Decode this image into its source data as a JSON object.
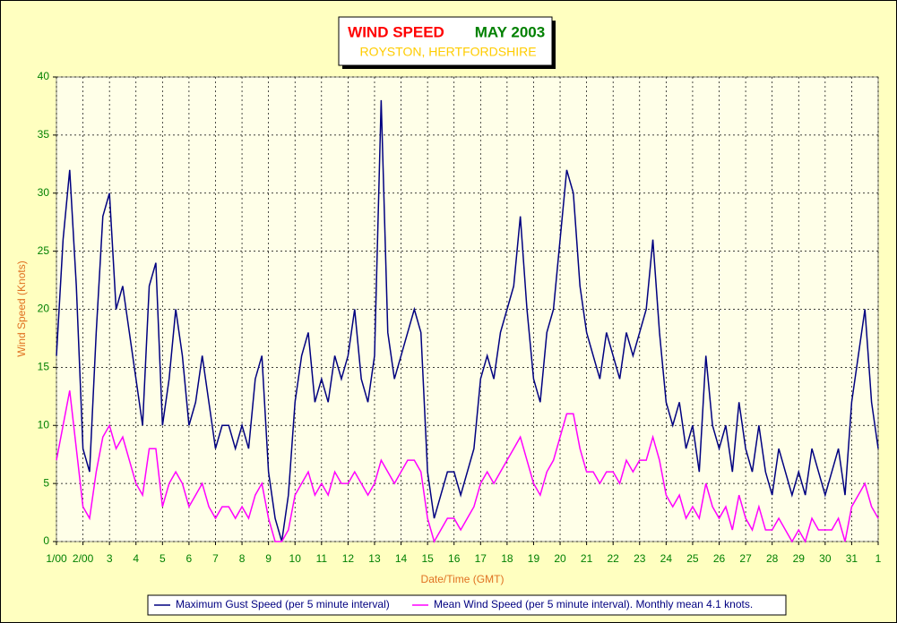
{
  "chart_data": {
    "type": "line",
    "title": "WIND SPEED",
    "title_period": "MAY 2003",
    "subtitle": "ROYSTON, HERTFORDSHIRE",
    "x_label": "Date/Time (GMT)",
    "y_label": "Wind Speed (Knots)",
    "x": [
      1,
      1.25,
      1.5,
      1.75,
      2,
      2.25,
      2.5,
      2.75,
      3,
      3.25,
      3.5,
      3.75,
      4,
      4.25,
      4.5,
      4.75,
      5,
      5.25,
      5.5,
      5.75,
      6,
      6.25,
      6.5,
      6.75,
      7,
      7.25,
      7.5,
      7.75,
      8,
      8.25,
      8.5,
      8.75,
      9,
      9.25,
      9.5,
      9.75,
      10,
      10.25,
      10.5,
      10.75,
      11,
      11.25,
      11.5,
      11.75,
      12,
      12.25,
      12.5,
      12.75,
      13,
      13.25,
      13.5,
      13.75,
      14,
      14.25,
      14.5,
      14.75,
      15,
      15.25,
      15.5,
      15.75,
      16,
      16.25,
      16.5,
      16.75,
      17,
      17.25,
      17.5,
      17.75,
      18,
      18.25,
      18.5,
      18.75,
      19,
      19.25,
      19.5,
      19.75,
      20,
      20.25,
      20.5,
      20.75,
      21,
      21.25,
      21.5,
      21.75,
      22,
      22.25,
      22.5,
      22.75,
      23,
      23.25,
      23.5,
      23.75,
      24,
      24.25,
      24.5,
      24.75,
      25,
      25.25,
      25.5,
      25.75,
      26,
      26.25,
      26.5,
      26.75,
      27,
      27.25,
      27.5,
      27.75,
      28,
      28.25,
      28.5,
      28.75,
      29,
      29.25,
      29.5,
      29.75,
      30,
      30.25,
      30.5,
      30.75,
      31,
      31.25,
      31.5,
      31.75,
      32
    ],
    "series": [
      {
        "name": "Maximum Gust Speed (per 5 minute interval)",
        "color": "#000080",
        "values": [
          16,
          26,
          32,
          22,
          8,
          6,
          18,
          28,
          30,
          20,
          22,
          18,
          14,
          10,
          22,
          24,
          10,
          14,
          20,
          16,
          10,
          12,
          16,
          12,
          8,
          10,
          10,
          8,
          10,
          8,
          14,
          16,
          6,
          2,
          0,
          4,
          12,
          16,
          18,
          12,
          14,
          12,
          16,
          14,
          16,
          20,
          14,
          12,
          16,
          38,
          18,
          14,
          16,
          18,
          20,
          18,
          6,
          2,
          4,
          6,
          6,
          4,
          6,
          8,
          14,
          16,
          14,
          18,
          20,
          22,
          28,
          20,
          14,
          12,
          18,
          20,
          26,
          32,
          30,
          22,
          18,
          16,
          14,
          18,
          16,
          14,
          18,
          16,
          18,
          20,
          26,
          18,
          12,
          10,
          12,
          8,
          10,
          6,
          16,
          10,
          8,
          10,
          6,
          12,
          8,
          6,
          10,
          6,
          4,
          8,
          6,
          4,
          6,
          4,
          8,
          6,
          4,
          6,
          8,
          4,
          12,
          16,
          20,
          12,
          8
        ]
      },
      {
        "name": "Mean Wind Speed (per 5 minute interval). Monthly mean 4.1 knots.",
        "color": "#ff00ff",
        "values": [
          7,
          10,
          13,
          8,
          3,
          2,
          6,
          9,
          10,
          8,
          9,
          7,
          5,
          4,
          8,
          8,
          3,
          5,
          6,
          5,
          3,
          4,
          5,
          3,
          2,
          3,
          3,
          2,
          3,
          2,
          4,
          5,
          2,
          0,
          0,
          1,
          4,
          5,
          6,
          4,
          5,
          4,
          6,
          5,
          5,
          6,
          5,
          4,
          5,
          7,
          6,
          5,
          6,
          7,
          7,
          6,
          2,
          0,
          1,
          2,
          2,
          1,
          2,
          3,
          5,
          6,
          5,
          6,
          7,
          8,
          9,
          7,
          5,
          4,
          6,
          7,
          9,
          11,
          11,
          8,
          6,
          6,
          5,
          6,
          6,
          5,
          7,
          6,
          7,
          7,
          9,
          7,
          4,
          3,
          4,
          2,
          3,
          2,
          5,
          3,
          2,
          3,
          1,
          4,
          2,
          1,
          3,
          1,
          1,
          2,
          1,
          0,
          1,
          0,
          2,
          1,
          1,
          1,
          2,
          0,
          3,
          4,
          5,
          3,
          2
        ]
      }
    ],
    "xlim": [
      1,
      32
    ],
    "xticks": [
      {
        "value": 1,
        "label": "1/00"
      },
      {
        "value": 2,
        "label": "2/00"
      },
      3,
      4,
      5,
      6,
      7,
      8,
      9,
      10,
      11,
      12,
      13,
      14,
      15,
      16,
      17,
      18,
      19,
      20,
      21,
      22,
      23,
      24,
      25,
      26,
      27,
      28,
      29,
      30,
      31,
      {
        "value": 32,
        "label": "1"
      }
    ],
    "ylim": [
      0,
      40
    ],
    "yticks": [
      0,
      5,
      10,
      15,
      20,
      25,
      30,
      35,
      40
    ],
    "grid": true
  }
}
